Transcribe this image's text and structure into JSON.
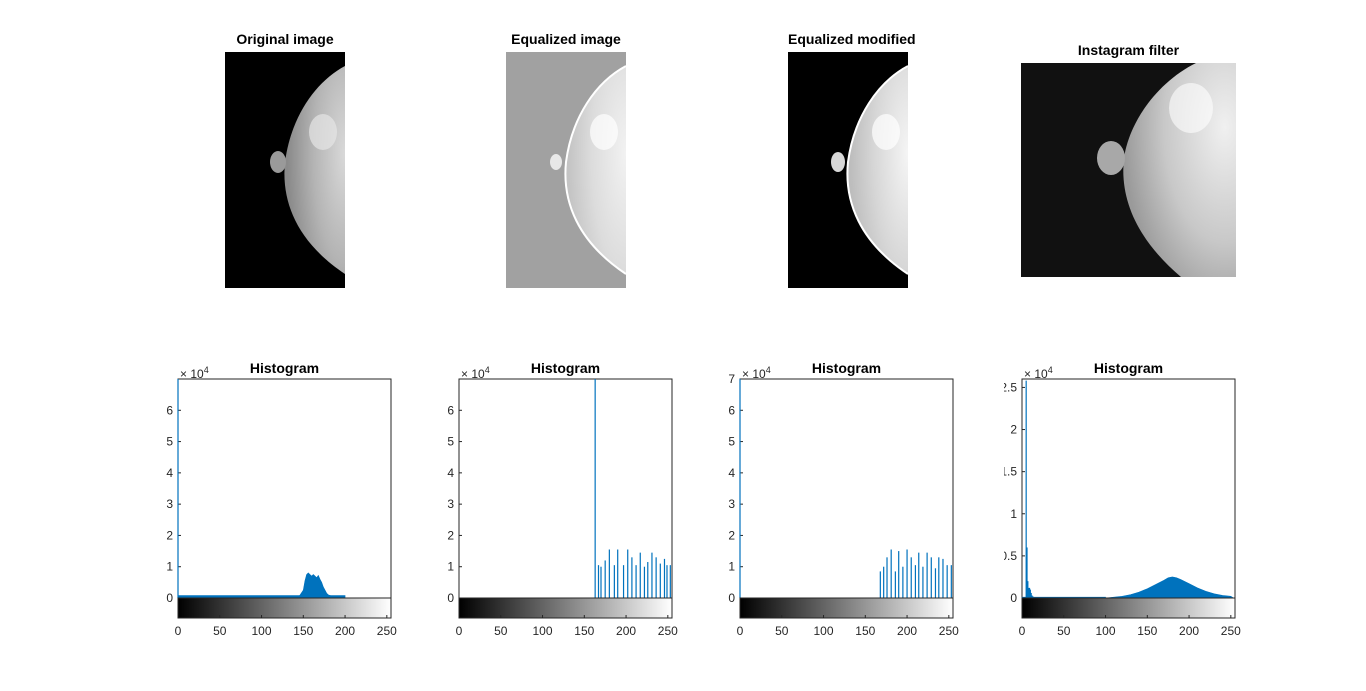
{
  "figure": {
    "images": [
      {
        "title": "Original image",
        "variant": "original"
      },
      {
        "title": "Equalized image",
        "variant": "equalized"
      },
      {
        "title": "Equalized modified",
        "variant": "modified"
      },
      {
        "title": "Instagram filter",
        "variant": "instagram"
      }
    ]
  },
  "colors": {
    "bar": "#0072BD",
    "axis": "#262626",
    "background": "#ffffff"
  },
  "chart_data": [
    {
      "type": "bar",
      "title": "Histogram",
      "exponent_label": "× 10^4",
      "xlim": [
        0,
        255
      ],
      "ylim": [
        0,
        7
      ],
      "xticks": [
        0,
        50,
        100,
        150,
        200,
        250
      ],
      "yticks": [
        0,
        1,
        2,
        3,
        4,
        5,
        6
      ],
      "colorbar": true,
      "series": [
        {
          "x": [
            0
          ],
          "values": [
            7.0
          ]
        },
        {
          "profile": "bump",
          "x": [
            140,
            145,
            150,
            152,
            154,
            156,
            158,
            160,
            162,
            164,
            166,
            168,
            170,
            172,
            174,
            176,
            178,
            180,
            185,
            190,
            200
          ],
          "values": [
            0.0,
            0.05,
            0.25,
            0.55,
            0.75,
            0.8,
            0.75,
            0.7,
            0.75,
            0.7,
            0.65,
            0.72,
            0.6,
            0.5,
            0.35,
            0.25,
            0.15,
            0.1,
            0.05,
            0.02,
            0.0
          ]
        },
        {
          "profile": "floor",
          "x": [
            0,
            200
          ],
          "values": [
            0.08,
            0.08
          ]
        }
      ]
    },
    {
      "type": "bar",
      "title": "Histogram",
      "exponent_label": "× 10^4",
      "xlim": [
        0,
        255
      ],
      "ylim": [
        0,
        7
      ],
      "xticks": [
        0,
        50,
        100,
        150,
        200,
        250
      ],
      "yticks": [
        0,
        1,
        2,
        3,
        4,
        5,
        6
      ],
      "colorbar": true,
      "series": [
        {
          "x": [
            163
          ],
          "values": [
            7.0
          ]
        },
        {
          "x": [
            167,
            170,
            175,
            180,
            186,
            190,
            197,
            202,
            207,
            212,
            217,
            222,
            226,
            231,
            236,
            241,
            246,
            249,
            253
          ],
          "values": [
            1.05,
            1.0,
            1.2,
            1.55,
            1.05,
            1.55,
            1.05,
            1.55,
            1.3,
            1.05,
            1.45,
            1.0,
            1.15,
            1.45,
            1.3,
            1.1,
            1.25,
            1.05,
            1.05
          ]
        }
      ]
    },
    {
      "type": "bar",
      "title": "Histogram",
      "exponent_label": "× 10^4",
      "xlim": [
        0,
        255
      ],
      "ylim": [
        0,
        7
      ],
      "xticks": [
        0,
        50,
        100,
        150,
        200,
        250
      ],
      "yticks": [
        0,
        1,
        2,
        3,
        4,
        5,
        6,
        7
      ],
      "colorbar": true,
      "series": [
        {
          "x": [
            0
          ],
          "values": [
            7.0
          ]
        },
        {
          "x": [
            168,
            172,
            176,
            181,
            186,
            190,
            195,
            200,
            205,
            210,
            214,
            219,
            224,
            229,
            234,
            238,
            243,
            248,
            253
          ],
          "values": [
            0.85,
            1.0,
            1.3,
            1.55,
            0.85,
            1.5,
            1.0,
            1.55,
            1.3,
            1.05,
            1.45,
            1.0,
            1.45,
            1.3,
            0.95,
            1.3,
            1.25,
            1.05,
            1.05
          ]
        }
      ]
    },
    {
      "type": "bar",
      "title": "Histogram",
      "exponent_label": "× 10^4",
      "xlim": [
        0,
        255
      ],
      "ylim": [
        0,
        2.6
      ],
      "xticks": [
        0,
        50,
        100,
        150,
        200,
        250
      ],
      "yticks": [
        0,
        0.5,
        1,
        1.5,
        2,
        2.5
      ],
      "colorbar": true,
      "series": [
        {
          "x": [
            5,
            6,
            7
          ],
          "values": [
            2.58,
            0.6,
            0.2
          ]
        },
        {
          "x": [
            8,
            9,
            10,
            11,
            12,
            13
          ],
          "values": [
            0.12,
            0.12,
            0.1,
            0.06,
            0.03,
            0.02
          ]
        },
        {
          "profile": "bump",
          "x": [
            100,
            110,
            120,
            130,
            140,
            150,
            160,
            170,
            175,
            180,
            185,
            190,
            200,
            210,
            220,
            230,
            240,
            250,
            253
          ],
          "values": [
            0.0,
            0.01,
            0.02,
            0.04,
            0.07,
            0.11,
            0.16,
            0.21,
            0.24,
            0.25,
            0.24,
            0.22,
            0.17,
            0.12,
            0.08,
            0.05,
            0.03,
            0.02,
            0.0
          ]
        },
        {
          "profile": "floor",
          "x": [
            0,
            100
          ],
          "values": [
            0.01,
            0.01
          ]
        }
      ]
    }
  ]
}
